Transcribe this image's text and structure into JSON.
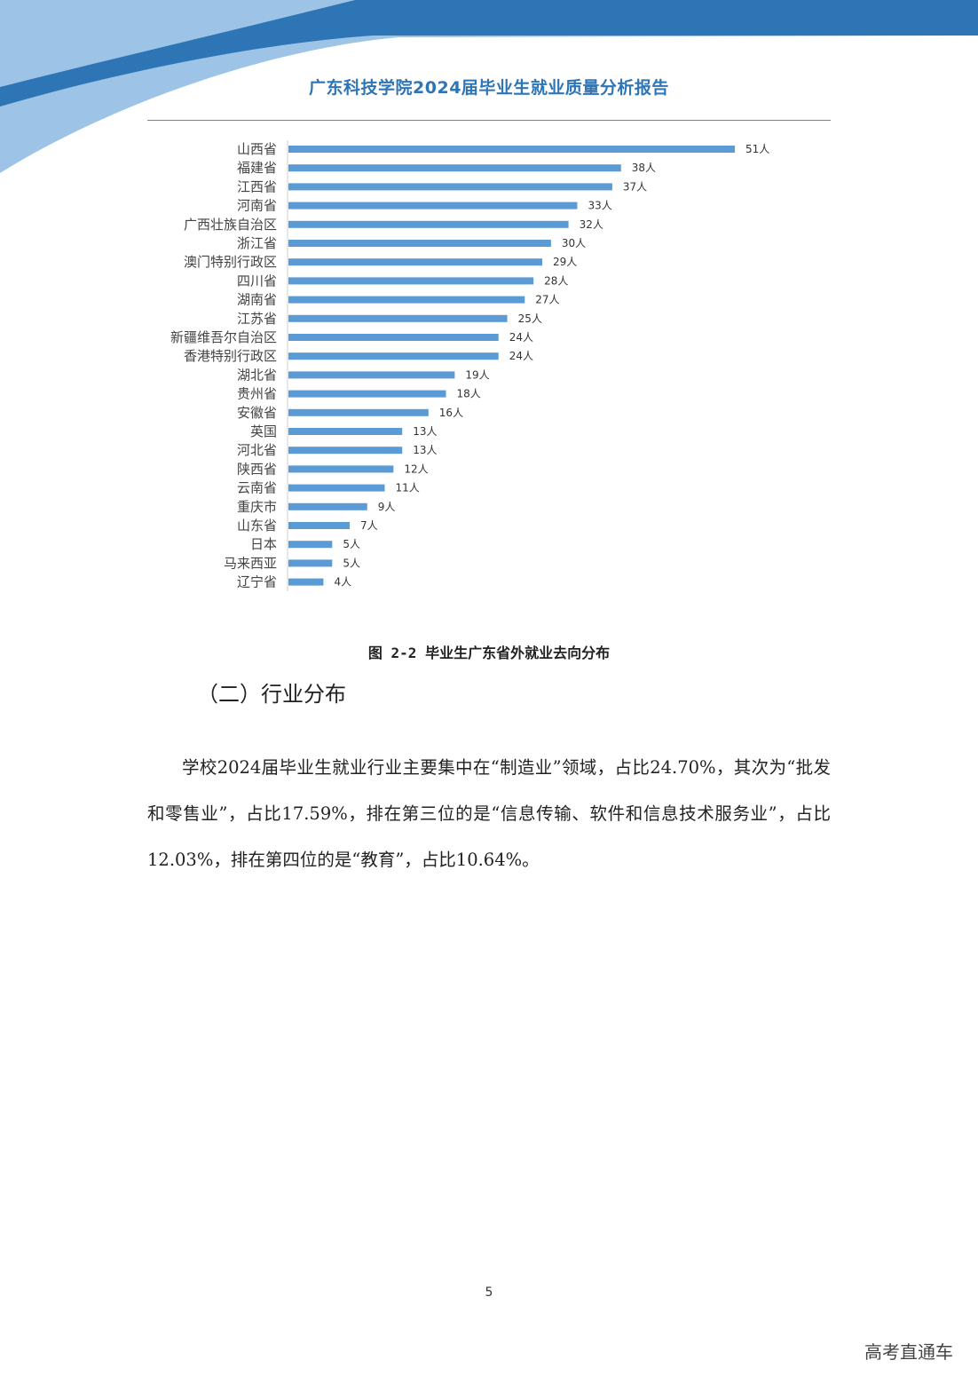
{
  "header": {
    "title": "广东科技学院2024届毕业生就业质量分析报告"
  },
  "colors": {
    "accent": "#2e75b6",
    "bar": "#5b9bd5",
    "banner_dark": "#2e75b6",
    "banner_light": "#9dc3e6"
  },
  "chart_data": {
    "type": "bar",
    "orientation": "horizontal",
    "categories": [
      "山西省",
      "福建省",
      "江西省",
      "河南省",
      "广西壮族自治区",
      "浙江省",
      "澳门特别行政区",
      "四川省",
      "湖南省",
      "江苏省",
      "新疆维吾尔自治区",
      "香港特别行政区",
      "湖北省",
      "贵州省",
      "安徽省",
      "英国",
      "河北省",
      "陕西省",
      "云南省",
      "重庆市",
      "山东省",
      "日本",
      "马来西亚",
      "辽宁省"
    ],
    "values": [
      51,
      38,
      37,
      33,
      32,
      30,
      29,
      28,
      27,
      25,
      24,
      24,
      19,
      18,
      16,
      13,
      13,
      12,
      11,
      9,
      7,
      5,
      5,
      4
    ],
    "value_suffix": "人",
    "grid": false,
    "legend": "none"
  },
  "figure": {
    "caption": "图 2-2 毕业生广东省外就业去向分布"
  },
  "section": {
    "heading": "（二）行业分布",
    "paragraph": "学校2024届毕业生就业行业主要集中在“制造业”领域，占比24.70%，其次为“批发和零售业”，占比17.59%，排在第三位的是“信息传输、软件和信息技术服务业”，占比12.03%，排在第四位的是“教育”，占比10.64%。"
  },
  "footer": {
    "page_number": "5"
  },
  "watermark": "高考直通车"
}
